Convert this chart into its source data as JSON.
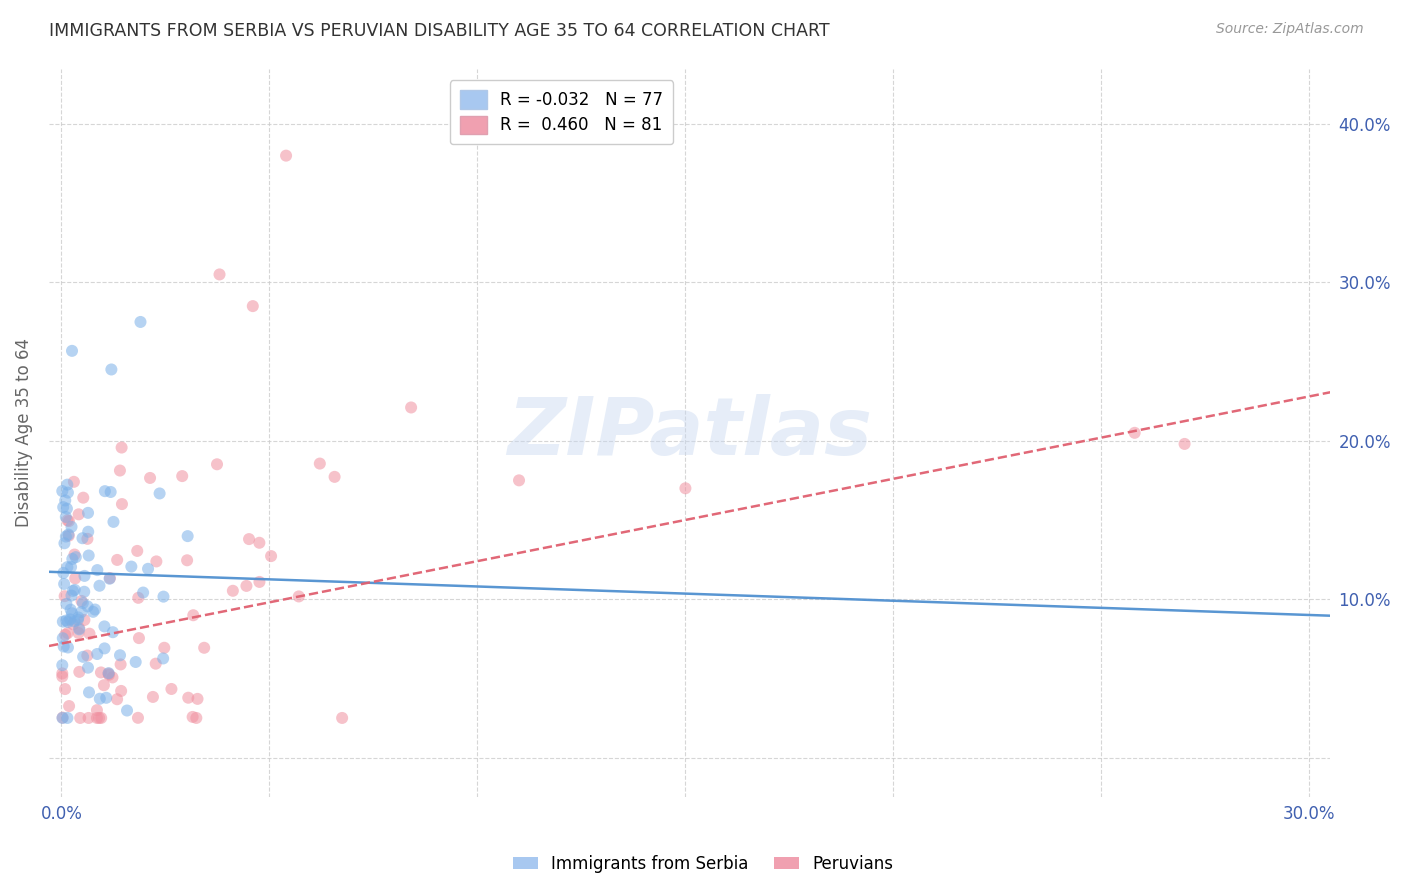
{
  "title": "IMMIGRANTS FROM SERBIA VS PERUVIAN DISABILITY AGE 35 TO 64 CORRELATION CHART",
  "source": "Source: ZipAtlas.com",
  "ylabel": "Disability Age 35 to 64",
  "series1_label": "Immigrants from Serbia",
  "series2_label": "Peruvians",
  "series1_color": "#7ab0e8",
  "series2_color": "#f090a0",
  "series1_line_color": "#5090d0",
  "series2_line_color": "#e06070",
  "series1_R": -0.032,
  "series2_R": 0.46,
  "series1_N": 77,
  "series2_N": 81,
  "watermark_text": "ZIPatlas",
  "watermark_color": "#c8d8f0",
  "background_color": "#ffffff",
  "grid_color": "#cccccc",
  "title_color": "#333333",
  "axis_tick_color": "#4060b0",
  "ylabel_color": "#666666",
  "source_color": "#999999",
  "legend1_face": "#a8c8f0",
  "legend2_face": "#f0a0b0",
  "legend1_text": "R = -0.032   N = 77",
  "legend2_text": "R =  0.460   N = 81",
  "serbia_bottom_label": "Immigrants from Serbia",
  "peru_bottom_label": "Peruvians",
  "xlim": [
    -0.003,
    0.305
  ],
  "ylim": [
    -0.025,
    0.435
  ],
  "xticks": [
    0.0,
    0.05,
    0.1,
    0.15,
    0.2,
    0.25,
    0.3
  ],
  "xtick_labels": [
    "0.0%",
    "",
    "",
    "",
    "",
    "",
    "30.0%"
  ],
  "yticks": [
    0.0,
    0.1,
    0.2,
    0.3,
    0.4
  ],
  "ytick_right_labels": [
    "",
    "10.0%",
    "20.0%",
    "30.0%",
    "40.0%"
  ],
  "serbia_line_intercept": 0.117,
  "serbia_line_slope": -0.09,
  "peru_line_intercept": 0.072,
  "peru_line_slope": 0.52,
  "serbia_seed": 42,
  "peru_seed": 99
}
